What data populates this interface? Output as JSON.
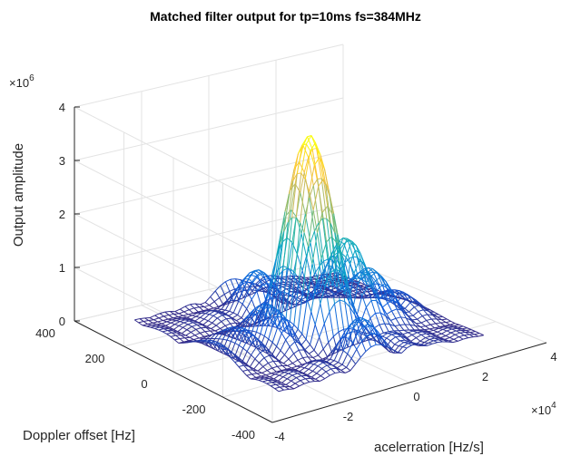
{
  "chart_data": {
    "type": "surface-mesh",
    "title": "Matched filter output for tp=10ms fs=384MHz",
    "xlabel": "acelerration [Hz/s]",
    "ylabel": "Doppler offset [Hz]",
    "zlabel": "Output amplitude",
    "x_multiplier": "×10^4",
    "z_multiplier": "×10^6",
    "xlim": [
      -4,
      4
    ],
    "ylim": [
      -400,
      400
    ],
    "zlim": [
      0,
      4
    ],
    "x_ticks": [
      "-4",
      "-2",
      "0",
      "2",
      "4"
    ],
    "y_ticks": [
      "400",
      "200",
      "0",
      "-200",
      "-400"
    ],
    "z_ticks": [
      "0",
      "1",
      "2",
      "3",
      "4"
    ],
    "x_multiplier_exp": "4",
    "z_multiplier_exp": "6",
    "peak": {
      "acceleration": 0,
      "doppler": 0,
      "amplitude": 3.6
    },
    "grid": true,
    "colormap": [
      "#352a87",
      "#0f5cdd",
      "#1481d6",
      "#06a4ca",
      "#2eb7a4",
      "#87bf77",
      "#d1bb59",
      "#fec832",
      "#f9fb0e"
    ]
  }
}
